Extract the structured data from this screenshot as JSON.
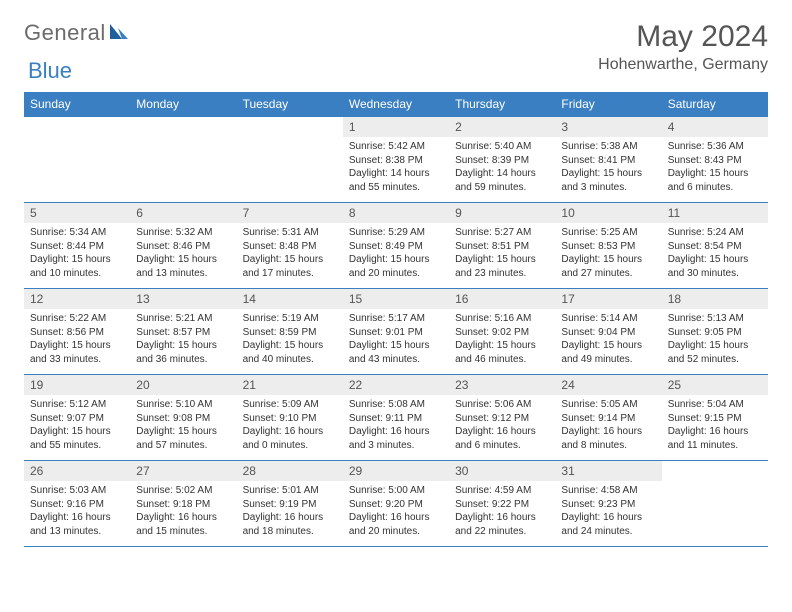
{
  "brand": {
    "text1": "General",
    "text2": "Blue"
  },
  "title": "May 2024",
  "location": "Hohenwarthe, Germany",
  "colors": {
    "header_bg": "#3a7fc1",
    "header_text": "#ffffff",
    "daynum_bg": "#ededed",
    "border": "#3a7fc1",
    "logo_gray": "#6b6b6b",
    "logo_blue": "#3a7fc1"
  },
  "weekdays": [
    "Sunday",
    "Monday",
    "Tuesday",
    "Wednesday",
    "Thursday",
    "Friday",
    "Saturday"
  ],
  "weeks": [
    [
      null,
      null,
      null,
      {
        "n": "1",
        "sr": "5:42 AM",
        "ss": "8:38 PM",
        "dl": "14 hours and 55 minutes."
      },
      {
        "n": "2",
        "sr": "5:40 AM",
        "ss": "8:39 PM",
        "dl": "14 hours and 59 minutes."
      },
      {
        "n": "3",
        "sr": "5:38 AM",
        "ss": "8:41 PM",
        "dl": "15 hours and 3 minutes."
      },
      {
        "n": "4",
        "sr": "5:36 AM",
        "ss": "8:43 PM",
        "dl": "15 hours and 6 minutes."
      }
    ],
    [
      {
        "n": "5",
        "sr": "5:34 AM",
        "ss": "8:44 PM",
        "dl": "15 hours and 10 minutes."
      },
      {
        "n": "6",
        "sr": "5:32 AM",
        "ss": "8:46 PM",
        "dl": "15 hours and 13 minutes."
      },
      {
        "n": "7",
        "sr": "5:31 AM",
        "ss": "8:48 PM",
        "dl": "15 hours and 17 minutes."
      },
      {
        "n": "8",
        "sr": "5:29 AM",
        "ss": "8:49 PM",
        "dl": "15 hours and 20 minutes."
      },
      {
        "n": "9",
        "sr": "5:27 AM",
        "ss": "8:51 PM",
        "dl": "15 hours and 23 minutes."
      },
      {
        "n": "10",
        "sr": "5:25 AM",
        "ss": "8:53 PM",
        "dl": "15 hours and 27 minutes."
      },
      {
        "n": "11",
        "sr": "5:24 AM",
        "ss": "8:54 PM",
        "dl": "15 hours and 30 minutes."
      }
    ],
    [
      {
        "n": "12",
        "sr": "5:22 AM",
        "ss": "8:56 PM",
        "dl": "15 hours and 33 minutes."
      },
      {
        "n": "13",
        "sr": "5:21 AM",
        "ss": "8:57 PM",
        "dl": "15 hours and 36 minutes."
      },
      {
        "n": "14",
        "sr": "5:19 AM",
        "ss": "8:59 PM",
        "dl": "15 hours and 40 minutes."
      },
      {
        "n": "15",
        "sr": "5:17 AM",
        "ss": "9:01 PM",
        "dl": "15 hours and 43 minutes."
      },
      {
        "n": "16",
        "sr": "5:16 AM",
        "ss": "9:02 PM",
        "dl": "15 hours and 46 minutes."
      },
      {
        "n": "17",
        "sr": "5:14 AM",
        "ss": "9:04 PM",
        "dl": "15 hours and 49 minutes."
      },
      {
        "n": "18",
        "sr": "5:13 AM",
        "ss": "9:05 PM",
        "dl": "15 hours and 52 minutes."
      }
    ],
    [
      {
        "n": "19",
        "sr": "5:12 AM",
        "ss": "9:07 PM",
        "dl": "15 hours and 55 minutes."
      },
      {
        "n": "20",
        "sr": "5:10 AM",
        "ss": "9:08 PM",
        "dl": "15 hours and 57 minutes."
      },
      {
        "n": "21",
        "sr": "5:09 AM",
        "ss": "9:10 PM",
        "dl": "16 hours and 0 minutes."
      },
      {
        "n": "22",
        "sr": "5:08 AM",
        "ss": "9:11 PM",
        "dl": "16 hours and 3 minutes."
      },
      {
        "n": "23",
        "sr": "5:06 AM",
        "ss": "9:12 PM",
        "dl": "16 hours and 6 minutes."
      },
      {
        "n": "24",
        "sr": "5:05 AM",
        "ss": "9:14 PM",
        "dl": "16 hours and 8 minutes."
      },
      {
        "n": "25",
        "sr": "5:04 AM",
        "ss": "9:15 PM",
        "dl": "16 hours and 11 minutes."
      }
    ],
    [
      {
        "n": "26",
        "sr": "5:03 AM",
        "ss": "9:16 PM",
        "dl": "16 hours and 13 minutes."
      },
      {
        "n": "27",
        "sr": "5:02 AM",
        "ss": "9:18 PM",
        "dl": "16 hours and 15 minutes."
      },
      {
        "n": "28",
        "sr": "5:01 AM",
        "ss": "9:19 PM",
        "dl": "16 hours and 18 minutes."
      },
      {
        "n": "29",
        "sr": "5:00 AM",
        "ss": "9:20 PM",
        "dl": "16 hours and 20 minutes."
      },
      {
        "n": "30",
        "sr": "4:59 AM",
        "ss": "9:22 PM",
        "dl": "16 hours and 22 minutes."
      },
      {
        "n": "31",
        "sr": "4:58 AM",
        "ss": "9:23 PM",
        "dl": "16 hours and 24 minutes."
      },
      null
    ]
  ]
}
